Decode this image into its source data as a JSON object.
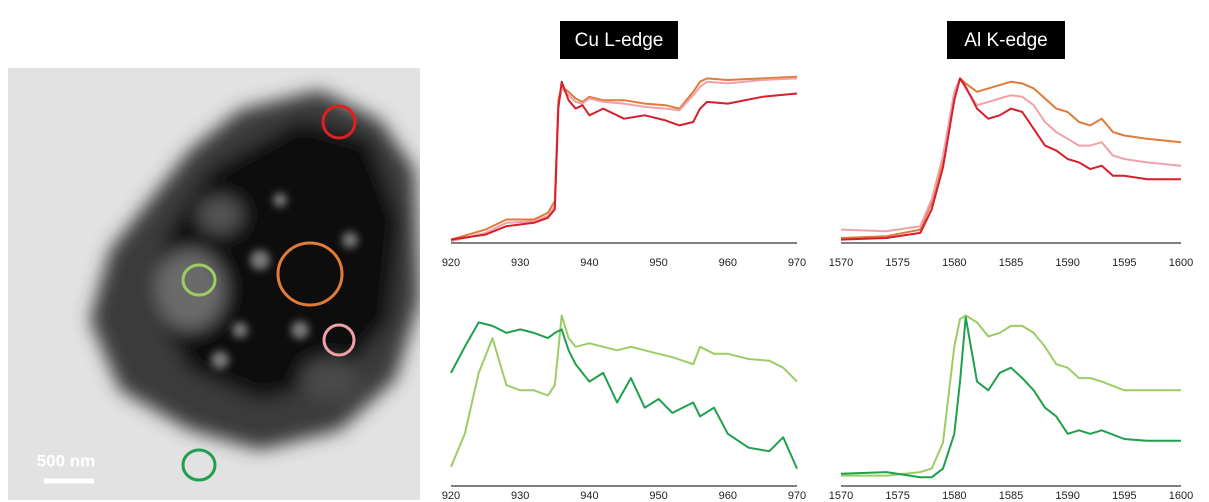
{
  "image": {
    "scale_bar": "500 nm"
  },
  "chart_data": [
    {
      "type": "line",
      "title": "Cu L-edge",
      "x": [
        920,
        925,
        928,
        932,
        934,
        935,
        935.5,
        936,
        937,
        938,
        939,
        940,
        942,
        945,
        948,
        951,
        953,
        955,
        956,
        957,
        960,
        965,
        970
      ],
      "series": [
        {
          "color": "#e07b39",
          "values": [
            2,
            8,
            14,
            14,
            18,
            25,
            85,
            93,
            90,
            86,
            84,
            87,
            85,
            85,
            83,
            82,
            80,
            90,
            96,
            98,
            97,
            98,
            99
          ]
        },
        {
          "color": "#f2a0a8",
          "values": [
            1,
            6,
            12,
            13,
            16,
            22,
            82,
            92,
            88,
            84,
            83,
            86,
            84,
            83,
            81,
            80,
            79,
            88,
            93,
            96,
            95,
            97,
            98
          ]
        },
        {
          "color": "#d41f2c",
          "values": [
            2,
            5,
            10,
            12,
            15,
            20,
            80,
            96,
            85,
            80,
            82,
            76,
            80,
            74,
            76,
            73,
            70,
            72,
            80,
            84,
            83,
            87,
            89
          ]
        }
      ],
      "xlim": [
        920,
        970
      ],
      "xticks": [
        920,
        930,
        940,
        950,
        960,
        970
      ],
      "ylim": [
        0,
        100
      ]
    },
    {
      "type": "line",
      "title": "Al K-edge",
      "x": [
        1570,
        1574,
        1577,
        1578,
        1579,
        1580,
        1580.5,
        1581,
        1582,
        1583,
        1584,
        1585,
        1586,
        1587,
        1588,
        1589,
        1590,
        1591,
        1592,
        1593,
        1594,
        1595,
        1597,
        1600
      ],
      "series": [
        {
          "color": "#e07b39",
          "values": [
            3,
            4,
            8,
            24,
            50,
            88,
            98,
            95,
            90,
            92,
            94,
            96,
            95,
            92,
            86,
            80,
            78,
            72,
            70,
            74,
            66,
            64,
            62,
            60
          ]
        },
        {
          "color": "#f2a0a8",
          "values": [
            8,
            7,
            10,
            26,
            52,
            90,
            98,
            92,
            82,
            84,
            86,
            88,
            87,
            82,
            72,
            66,
            62,
            58,
            58,
            60,
            52,
            50,
            48,
            46
          ]
        },
        {
          "color": "#d41f2c",
          "values": [
            2,
            3,
            6,
            20,
            45,
            85,
            98,
            93,
            80,
            74,
            76,
            80,
            78,
            68,
            58,
            55,
            50,
            48,
            44,
            46,
            40,
            40,
            38,
            38
          ]
        }
      ],
      "xlim": [
        1570,
        1600
      ],
      "xticks": [
        1570,
        1575,
        1580,
        1585,
        1590,
        1595,
        1600
      ],
      "ylim": [
        0,
        100
      ]
    },
    {
      "type": "line",
      "x": [
        920,
        922,
        924,
        926,
        928,
        930,
        932,
        934,
        935,
        936,
        937,
        938,
        940,
        942,
        944,
        946,
        948,
        950,
        952,
        955,
        956,
        958,
        960,
        963,
        966,
        968,
        970
      ],
      "series": [
        {
          "color": "#9ccc65",
          "values": [
            11,
            30,
            65,
            85,
            58,
            55,
            55,
            52,
            58,
            98,
            85,
            80,
            82,
            80,
            78,
            80,
            78,
            76,
            74,
            70,
            80,
            76,
            76,
            73,
            72,
            68,
            60
          ]
        },
        {
          "color": "#1ea04c",
          "values": [
            65,
            80,
            94,
            92,
            88,
            90,
            88,
            85,
            88,
            90,
            78,
            70,
            60,
            65,
            48,
            62,
            45,
            50,
            42,
            48,
            40,
            45,
            30,
            22,
            20,
            28,
            10
          ]
        }
      ],
      "xlim": [
        920,
        970
      ],
      "xticks": [
        920,
        930,
        940,
        950,
        960,
        970
      ],
      "ylim": [
        0,
        100
      ]
    },
    {
      "type": "line",
      "x": [
        1570,
        1574,
        1577,
        1578,
        1579,
        1580,
        1580.5,
        1581,
        1582,
        1583,
        1584,
        1585,
        1586,
        1587,
        1588,
        1589,
        1590,
        1591,
        1592,
        1593,
        1595,
        1597,
        1600
      ],
      "series": [
        {
          "color": "#9ccc65",
          "values": [
            6,
            6,
            8,
            10,
            25,
            80,
            96,
            98,
            94,
            86,
            88,
            92,
            92,
            88,
            80,
            70,
            68,
            62,
            62,
            60,
            55,
            55,
            55
          ]
        },
        {
          "color": "#1ea04c",
          "values": [
            7,
            8,
            5,
            5,
            10,
            30,
            60,
            97,
            60,
            55,
            65,
            68,
            62,
            55,
            45,
            40,
            30,
            32,
            30,
            32,
            27,
            26,
            26
          ]
        }
      ],
      "xlim": [
        1570,
        1600
      ],
      "xticks": [
        1570,
        1575,
        1580,
        1585,
        1590,
        1595,
        1600
      ],
      "ylim": [
        0,
        100
      ]
    }
  ]
}
